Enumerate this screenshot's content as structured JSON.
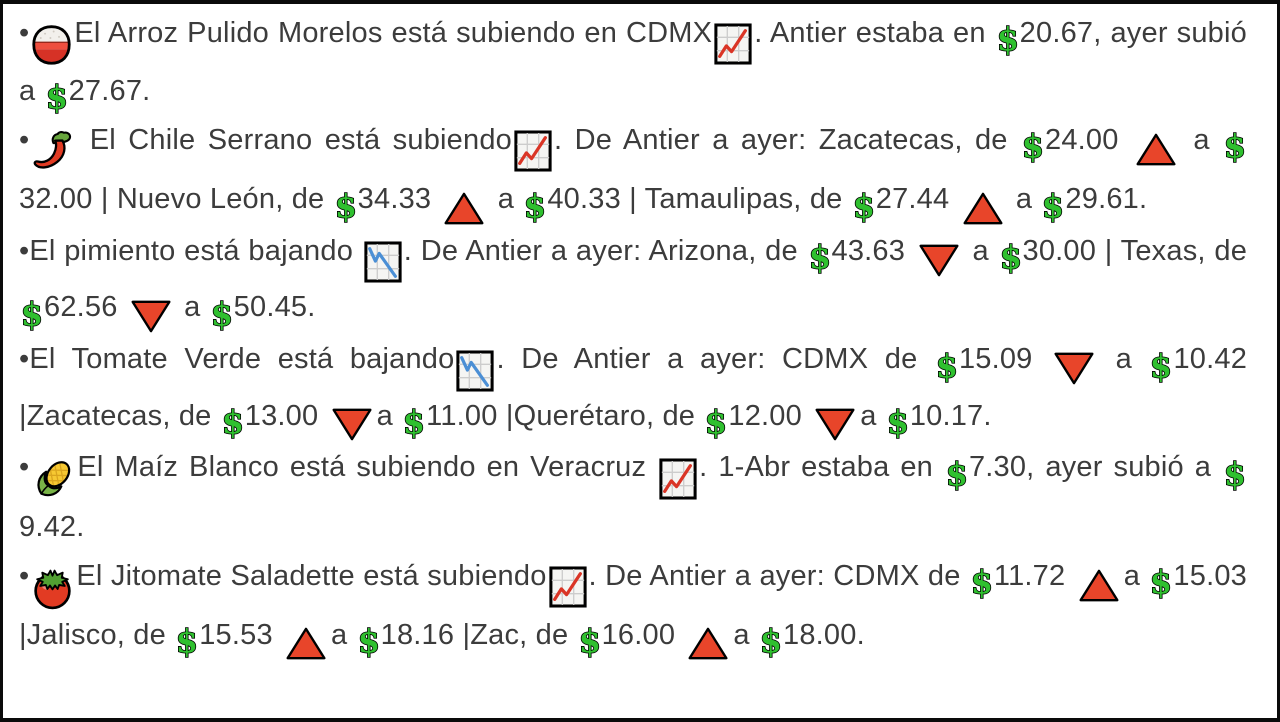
{
  "colors": {
    "text": "#3c3c3c",
    "frame_border": "#0a0a0a",
    "dollar_green": "#2fc02f",
    "triangle_red": "#e8452a",
    "chart_up_line": "#da3526",
    "chart_down_line": "#4b8fd5",
    "pepper_red": "#e23b23",
    "corn_yellow": "#f6c832",
    "leaf_green": "#68a63d"
  },
  "content": {
    "bullets": [
      {
        "segments": [
          {
            "text": "•"
          },
          {
            "icon": "rice-bowl-icon"
          },
          {
            "text": "El Arroz Pulido Morelos está subiendo en CDMX"
          },
          {
            "icon": "chart-up-icon"
          },
          {
            "text": ". Antier estaba en "
          },
          {
            "icon": "dollar-icon"
          },
          {
            "text": "20.67, ayer subió a "
          },
          {
            "icon": "dollar-icon"
          },
          {
            "text": "27.67."
          }
        ]
      },
      {
        "segments": [
          {
            "text": "•"
          },
          {
            "icon": "chili-icon"
          },
          {
            "text": " El Chile Serrano está subiendo"
          },
          {
            "icon": "chart-up-icon"
          },
          {
            "text": ". De Antier a ayer: Zacatecas, de "
          },
          {
            "icon": "dollar-icon"
          },
          {
            "text": "24.00 "
          },
          {
            "icon": "up-triangle-icon"
          },
          {
            "text": " a "
          },
          {
            "icon": "dollar-icon"
          },
          {
            "text": "32.00 | Nuevo León, de "
          },
          {
            "icon": "dollar-icon"
          },
          {
            "text": "34.33 "
          },
          {
            "icon": "up-triangle-icon"
          },
          {
            "text": " a "
          },
          {
            "icon": "dollar-icon"
          },
          {
            "text": "40.33 | Tamaulipas, de "
          },
          {
            "icon": "dollar-icon"
          },
          {
            "text": "27.44 "
          },
          {
            "icon": "up-triangle-icon"
          },
          {
            "text": " a "
          },
          {
            "icon": "dollar-icon"
          },
          {
            "text": "29.61."
          }
        ]
      },
      {
        "segments": [
          {
            "text": "•El pimiento está bajando "
          },
          {
            "icon": "chart-down-icon"
          },
          {
            "text": ". De Antier a ayer: Arizona, de "
          },
          {
            "icon": "dollar-icon"
          },
          {
            "text": "43.63 "
          },
          {
            "icon": "down-triangle-icon"
          },
          {
            "text": " a "
          },
          {
            "icon": "dollar-icon"
          },
          {
            "text": "30.00 | Texas, de "
          },
          {
            "icon": "dollar-icon"
          },
          {
            "text": "62.56 "
          },
          {
            "icon": "down-triangle-icon"
          },
          {
            "text": " a "
          },
          {
            "icon": "dollar-icon"
          },
          {
            "text": "50.45."
          }
        ]
      },
      {
        "segments": [
          {
            "text": "•El Tomate Verde está bajando"
          },
          {
            "icon": "chart-down-icon"
          },
          {
            "text": ". De Antier a ayer: CDMX de "
          },
          {
            "icon": "dollar-icon"
          },
          {
            "text": "15.09 "
          },
          {
            "icon": "down-triangle-icon"
          },
          {
            "text": " a "
          },
          {
            "icon": "dollar-icon"
          },
          {
            "text": "10.42 |Zacatecas, de "
          },
          {
            "icon": "dollar-icon"
          },
          {
            "text": "13.00 "
          },
          {
            "icon": "down-triangle-icon"
          },
          {
            "text": "a "
          },
          {
            "icon": "dollar-icon"
          },
          {
            "text": "11.00 |Querétaro, de "
          },
          {
            "icon": "dollar-icon"
          },
          {
            "text": "12.00 "
          },
          {
            "icon": "down-triangle-icon"
          },
          {
            "text": "a "
          },
          {
            "icon": "dollar-icon"
          },
          {
            "text": "10.17."
          }
        ]
      },
      {
        "segments": [
          {
            "text": "•"
          },
          {
            "icon": "corn-icon"
          },
          {
            "text": "El Maíz Blanco está subiendo en Veracruz "
          },
          {
            "icon": "chart-up-icon"
          },
          {
            "text": ". 1-Abr estaba en "
          },
          {
            "icon": "dollar-icon"
          },
          {
            "text": "7.30, ayer subió a "
          },
          {
            "icon": "dollar-icon"
          },
          {
            "text": "9.42."
          }
        ]
      },
      {
        "segments": [
          {
            "text": "•"
          },
          {
            "icon": "tomato-icon"
          },
          {
            "text": "El Jitomate Saladette está subiendo"
          },
          {
            "icon": "chart-up-icon"
          },
          {
            "text": ". De Antier a ayer: CDMX de "
          },
          {
            "icon": "dollar-icon"
          },
          {
            "text": "11.72 "
          },
          {
            "icon": "up-triangle-icon"
          },
          {
            "text": "a "
          },
          {
            "icon": "dollar-icon"
          },
          {
            "text": "15.03 |Jalisco, de "
          },
          {
            "icon": "dollar-icon"
          },
          {
            "text": "15.53 "
          },
          {
            "icon": "up-triangle-icon"
          },
          {
            "text": "a "
          },
          {
            "icon": "dollar-icon"
          },
          {
            "text": "18.16 |Zac, de "
          },
          {
            "icon": "dollar-icon"
          },
          {
            "text": "16.00 "
          },
          {
            "icon": "up-triangle-icon"
          },
          {
            "text": "a "
          },
          {
            "icon": "dollar-icon"
          },
          {
            "text": "18.00."
          }
        ]
      }
    ]
  }
}
